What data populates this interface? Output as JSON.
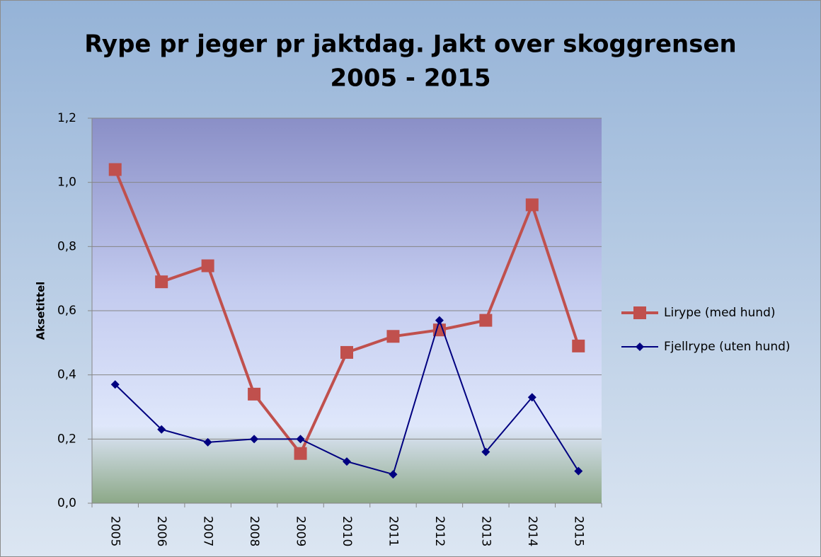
{
  "chart_data": {
    "type": "line",
    "title": [
      "Rype pr jeger pr jaktdag. Jakt over skoggrensen",
      "2005 - 2015"
    ],
    "y_label": "Aksetittel",
    "categories": [
      "2005",
      "2006",
      "2007",
      "2008",
      "2009",
      "2010",
      "2011",
      "2012",
      "2013",
      "2014",
      "2015"
    ],
    "series": [
      {
        "name": "Lirype (med hund)",
        "color": "#c0504d",
        "marker": "square",
        "values": [
          1.04,
          0.69,
          0.74,
          0.34,
          0.155,
          0.47,
          0.52,
          0.54,
          0.57,
          0.93,
          0.49
        ]
      },
      {
        "name": "Fjellrype (uten hund)",
        "color": "#000080",
        "marker": "diamond",
        "values": [
          0.37,
          0.23,
          0.19,
          0.2,
          0.2,
          0.13,
          0.09,
          0.57,
          0.16,
          0.33,
          0.1
        ]
      }
    ],
    "ylim": [
      0,
      1.2
    ],
    "yticks": [
      {
        "value": 0,
        "label": "0,0"
      },
      {
        "value": 0.2,
        "label": "0,2"
      },
      {
        "value": 0.4,
        "label": "0,4"
      },
      {
        "value": 0.6,
        "label": "0,6"
      },
      {
        "value": 0.8,
        "label": "0,8"
      },
      {
        "value": 1.0,
        "label": "1,0"
      },
      {
        "value": 1.2,
        "label": "1,2"
      }
    ],
    "grid": true,
    "legend": "right"
  }
}
